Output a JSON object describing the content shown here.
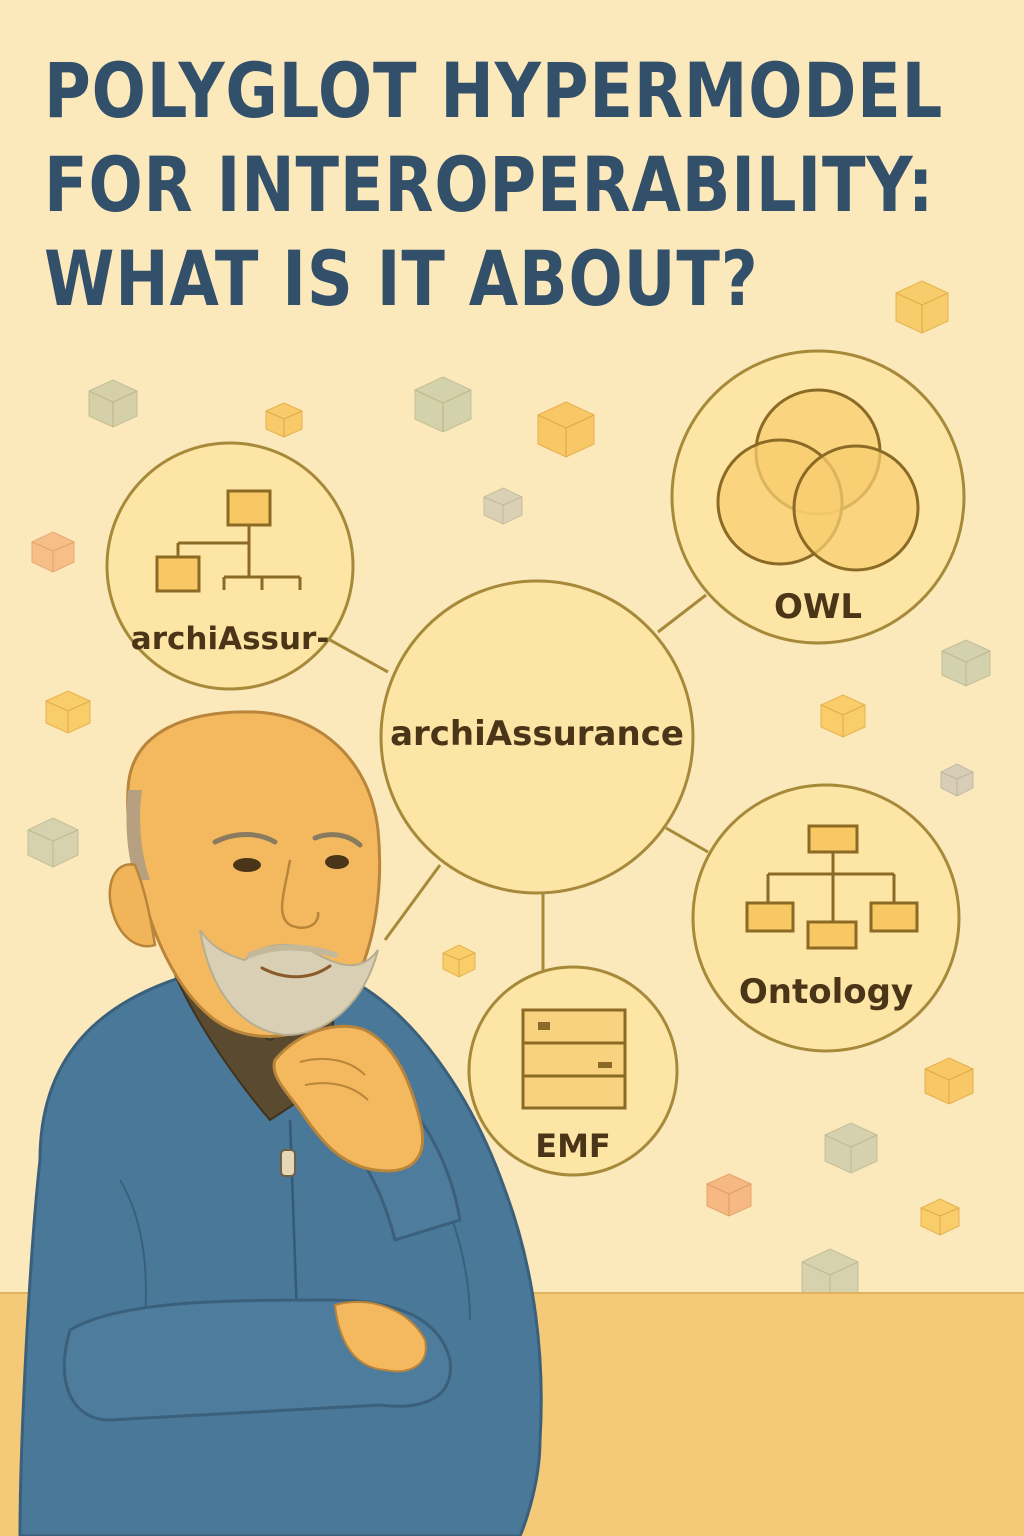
{
  "title": {
    "line1": "POLYGLOT HYPERMODEL",
    "line2": "FOR INTEROPERABILITY:",
    "line3": "WHAT IS IT ABOUT?"
  },
  "diagram": {
    "center_label": "archiAssurance",
    "nodes": {
      "top_left_label": "archiAssur-",
      "owl_label": "OWL",
      "ontology_label": "Ontology",
      "emf_label": "EMF"
    }
  },
  "icons": [
    "hierarchy-icon",
    "venn-diagram-icon",
    "org-chart-icon",
    "storage-stack-icon",
    "cube-icon"
  ],
  "colors": {
    "background": "#fbe8bb",
    "title": "#33506b",
    "circle_fill": "#fde5a5",
    "circle_stroke": "#a68a3a",
    "icon_stroke": "#8a6a24",
    "label": "#4b3518",
    "sweater": "#4a7898",
    "table": "#f4c977"
  }
}
